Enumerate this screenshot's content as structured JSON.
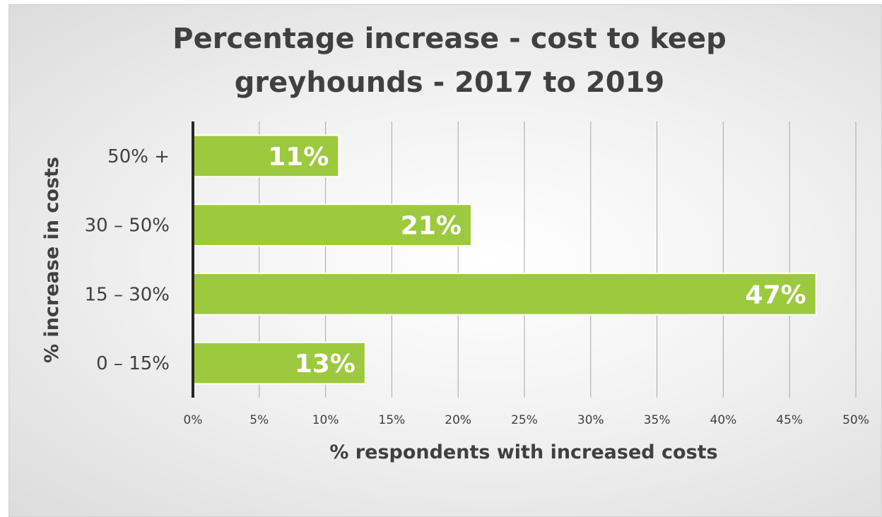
{
  "colors": {
    "bar": "#9dc93f",
    "bar_border": "#ffffff",
    "text": "#404040",
    "grid": "#a6a6a6",
    "axis": "#262626"
  },
  "chart_data": {
    "type": "bar",
    "orientation": "horizontal",
    "title": [
      "Percentage increase - cost to keep",
      "greyhounds - 2017 to 2019"
    ],
    "xlabel": "% respondents with increased costs",
    "ylabel": "% increase in costs",
    "categories": [
      "50% +",
      "30 – 50%",
      "15 – 30%",
      "0 – 15%"
    ],
    "values": [
      11,
      21,
      47,
      13
    ],
    "data_labels": [
      "11%",
      "21%",
      "47%",
      "13%"
    ],
    "xlim": [
      0,
      50
    ],
    "xticks": [
      0,
      5,
      10,
      15,
      20,
      25,
      30,
      35,
      40,
      45,
      50
    ],
    "xtick_labels": [
      "0%",
      "5%",
      "10%",
      "15%",
      "20%",
      "25%",
      "30%",
      "35%",
      "40%",
      "45%",
      "50%"
    ],
    "grid": "vertical",
    "legend": "none"
  }
}
